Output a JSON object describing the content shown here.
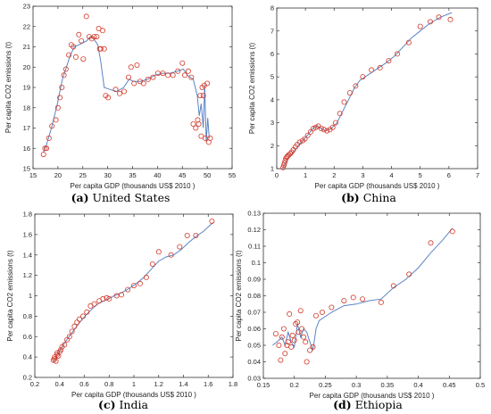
{
  "chart_data": [
    {
      "type": "scatter",
      "tag": "(a)",
      "caption": "United States",
      "xlabel": "Per capita GDP (thousands US$ 2010 )",
      "ylabel": "Per capita CO2 emissions (t)",
      "xlim": [
        15,
        55
      ],
      "ylim": [
        15,
        23
      ],
      "xticks": [
        15,
        20,
        25,
        30,
        35,
        40,
        45,
        50,
        55
      ],
      "yticks": [
        15,
        16,
        17,
        18,
        19,
        20,
        21,
        22,
        23
      ],
      "fit_line": [
        [
          17.1,
          15.8
        ],
        [
          17.6,
          16.1
        ],
        [
          18.1,
          16.5
        ],
        [
          18.7,
          17.0
        ],
        [
          19.2,
          17.5
        ],
        [
          19.8,
          18.1
        ],
        [
          20.4,
          18.8
        ],
        [
          21.0,
          19.5
        ],
        [
          21.7,
          20.0
        ],
        [
          22.5,
          20.6
        ],
        [
          23.3,
          21.0
        ],
        [
          24.2,
          21.1
        ],
        [
          25.0,
          21.2
        ],
        [
          25.8,
          21.3
        ],
        [
          26.5,
          21.5
        ],
        [
          27.2,
          21.4
        ],
        [
          28.0,
          21.1
        ],
        [
          28.6,
          20.3
        ],
        [
          29.3,
          19.0
        ],
        [
          30.5,
          18.9
        ],
        [
          31.8,
          18.8
        ],
        [
          33.2,
          19.0
        ],
        [
          34.3,
          19.4
        ],
        [
          35.2,
          19.3
        ],
        [
          36.5,
          19.3
        ],
        [
          38.0,
          19.4
        ],
        [
          39.5,
          19.6
        ],
        [
          41.0,
          19.7
        ],
        [
          42.5,
          19.7
        ],
        [
          44.0,
          19.8
        ],
        [
          45.2,
          19.9
        ],
        [
          46.0,
          19.6
        ],
        [
          47.2,
          19.4
        ],
        [
          48.0,
          18.6
        ],
        [
          48.4,
          17.6
        ],
        [
          48.8,
          18.2
        ],
        [
          49.2,
          17.0
        ],
        [
          49.5,
          19.1
        ],
        [
          49.8,
          16.3
        ],
        [
          50.1,
          17.5
        ],
        [
          50.4,
          16.5
        ]
      ],
      "points": [
        [
          17.1,
          15.7
        ],
        [
          17.4,
          16.0
        ],
        [
          17.7,
          16.0
        ],
        [
          18.2,
          16.5
        ],
        [
          18.8,
          17.1
        ],
        [
          19.6,
          17.4
        ],
        [
          20.0,
          18.0
        ],
        [
          20.4,
          18.5
        ],
        [
          20.8,
          19.0
        ],
        [
          21.2,
          19.6
        ],
        [
          21.6,
          19.9
        ],
        [
          22.2,
          20.6
        ],
        [
          22.7,
          21.1
        ],
        [
          23.1,
          21.0
        ],
        [
          23.6,
          20.5
        ],
        [
          24.2,
          21.6
        ],
        [
          24.7,
          21.3
        ],
        [
          25.1,
          20.4
        ],
        [
          25.7,
          22.5
        ],
        [
          26.3,
          21.5
        ],
        [
          26.8,
          21.4
        ],
        [
          27.3,
          21.5
        ],
        [
          27.8,
          21.5
        ],
        [
          28.2,
          21.9
        ],
        [
          28.4,
          20.9
        ],
        [
          28.6,
          20.9
        ],
        [
          29.0,
          21.8
        ],
        [
          29.3,
          20.9
        ],
        [
          29.6,
          18.6
        ],
        [
          30.1,
          18.5
        ],
        [
          31.6,
          18.9
        ],
        [
          32.4,
          18.7
        ],
        [
          33.3,
          18.8
        ],
        [
          34.2,
          19.5
        ],
        [
          34.7,
          20.0
        ],
        [
          35.3,
          19.2
        ],
        [
          35.9,
          20.1
        ],
        [
          36.5,
          19.3
        ],
        [
          37.2,
          19.2
        ],
        [
          38.1,
          19.4
        ],
        [
          39.1,
          19.5
        ],
        [
          40.1,
          19.7
        ],
        [
          41.1,
          19.7
        ],
        [
          42.1,
          19.6
        ],
        [
          43.1,
          19.6
        ],
        [
          44.1,
          19.8
        ],
        [
          45.0,
          20.2
        ],
        [
          45.5,
          19.6
        ],
        [
          46.2,
          19.8
        ],
        [
          46.8,
          19.5
        ],
        [
          47.2,
          17.2
        ],
        [
          47.7,
          17.0
        ],
        [
          48.1,
          17.4
        ],
        [
          48.3,
          17.2
        ],
        [
          48.6,
          18.6
        ],
        [
          48.8,
          16.6
        ],
        [
          49.0,
          19.0
        ],
        [
          49.2,
          18.6
        ],
        [
          49.4,
          19.1
        ],
        [
          49.6,
          16.5
        ],
        [
          50.0,
          19.2
        ],
        [
          50.3,
          16.3
        ],
        [
          50.6,
          16.5
        ]
      ]
    },
    {
      "type": "scatter",
      "tag": "(b)",
      "caption": "China",
      "xlabel": "Per capita GDP (thousands US$ 2010 )",
      "ylabel": "Per capita CO2 emissions (t)",
      "xlim": [
        0,
        7
      ],
      "ylim": [
        1,
        8
      ],
      "xticks": [
        0,
        1,
        2,
        3,
        4,
        5,
        6,
        7
      ],
      "yticks": [
        1,
        2,
        3,
        4,
        5,
        6,
        7,
        8
      ],
      "fit_line": [
        [
          0.22,
          1.05
        ],
        [
          0.3,
          1.25
        ],
        [
          0.4,
          1.45
        ],
        [
          0.5,
          1.6
        ],
        [
          0.6,
          1.75
        ],
        [
          0.7,
          1.9
        ],
        [
          0.8,
          2.05
        ],
        [
          0.9,
          2.2
        ],
        [
          1.0,
          2.35
        ],
        [
          1.1,
          2.5
        ],
        [
          1.2,
          2.65
        ],
        [
          1.3,
          2.8
        ],
        [
          1.4,
          2.85
        ],
        [
          1.5,
          2.8
        ],
        [
          1.6,
          2.7
        ],
        [
          1.7,
          2.65
        ],
        [
          1.8,
          2.7
        ],
        [
          1.9,
          2.75
        ],
        [
          2.1,
          3.0
        ],
        [
          2.3,
          3.5
        ],
        [
          2.5,
          4.0
        ],
        [
          2.7,
          4.5
        ],
        [
          2.9,
          4.85
        ],
        [
          3.2,
          5.1
        ],
        [
          3.5,
          5.35
        ],
        [
          3.8,
          5.6
        ],
        [
          4.1,
          5.9
        ],
        [
          4.4,
          6.3
        ],
        [
          4.7,
          6.7
        ],
        [
          5.0,
          7.0
        ],
        [
          5.3,
          7.3
        ],
        [
          5.7,
          7.6
        ],
        [
          6.1,
          7.8
        ]
      ],
      "points": [
        [
          0.22,
          1.05
        ],
        [
          0.25,
          1.15
        ],
        [
          0.27,
          1.25
        ],
        [
          0.3,
          1.35
        ],
        [
          0.32,
          1.45
        ],
        [
          0.35,
          1.5
        ],
        [
          0.38,
          1.55
        ],
        [
          0.42,
          1.6
        ],
        [
          0.47,
          1.65
        ],
        [
          0.52,
          1.72
        ],
        [
          0.58,
          1.82
        ],
        [
          0.65,
          1.95
        ],
        [
          0.72,
          2.05
        ],
        [
          0.8,
          2.15
        ],
        [
          0.9,
          2.22
        ],
        [
          0.98,
          2.3
        ],
        [
          1.08,
          2.45
        ],
        [
          1.18,
          2.6
        ],
        [
          1.28,
          2.75
        ],
        [
          1.36,
          2.8
        ],
        [
          1.45,
          2.85
        ],
        [
          1.55,
          2.75
        ],
        [
          1.65,
          2.7
        ],
        [
          1.75,
          2.65
        ],
        [
          1.85,
          2.7
        ],
        [
          1.95,
          2.8
        ],
        [
          2.05,
          3.0
        ],
        [
          2.2,
          3.4
        ],
        [
          2.35,
          3.9
        ],
        [
          2.55,
          4.3
        ],
        [
          2.75,
          4.6
        ],
        [
          3.0,
          5.0
        ],
        [
          3.3,
          5.3
        ],
        [
          3.6,
          5.4
        ],
        [
          3.9,
          5.7
        ],
        [
          4.2,
          6.0
        ],
        [
          4.6,
          6.5
        ],
        [
          5.0,
          7.2
        ],
        [
          5.35,
          7.4
        ],
        [
          5.65,
          7.6
        ],
        [
          6.05,
          7.5
        ]
      ]
    },
    {
      "type": "scatter",
      "tag": "(c)",
      "caption": "India",
      "xlabel": "Per capita GDP (thousands US$ 2010 )",
      "ylabel": "Per capita CO2 emissions (t)",
      "xlim": [
        0.2,
        1.8
      ],
      "ylim": [
        0.2,
        1.8
      ],
      "xticks": [
        0.2,
        0.4,
        0.6,
        0.8,
        1,
        1.2,
        1.4,
        1.6,
        1.8
      ],
      "yticks": [
        0.2,
        0.4,
        0.6,
        0.8,
        1,
        1.2,
        1.4,
        1.6,
        1.8
      ],
      "fit_line": [
        [
          0.36,
          0.37
        ],
        [
          0.38,
          0.42
        ],
        [
          0.4,
          0.46
        ],
        [
          0.43,
          0.52
        ],
        [
          0.47,
          0.59
        ],
        [
          0.52,
          0.67
        ],
        [
          0.57,
          0.75
        ],
        [
          0.62,
          0.82
        ],
        [
          0.67,
          0.88
        ],
        [
          0.72,
          0.93
        ],
        [
          0.78,
          0.96
        ],
        [
          0.84,
          1.0
        ],
        [
          0.9,
          1.03
        ],
        [
          0.96,
          1.07
        ],
        [
          1.02,
          1.12
        ],
        [
          1.08,
          1.18
        ],
        [
          1.14,
          1.26
        ],
        [
          1.2,
          1.34
        ],
        [
          1.26,
          1.38
        ],
        [
          1.32,
          1.4
        ],
        [
          1.38,
          1.45
        ],
        [
          1.44,
          1.52
        ],
        [
          1.5,
          1.58
        ],
        [
          1.56,
          1.63
        ],
        [
          1.64,
          1.72
        ]
      ],
      "points": [
        [
          0.35,
          0.37
        ],
        [
          0.36,
          0.38
        ],
        [
          0.36,
          0.4
        ],
        [
          0.37,
          0.36
        ],
        [
          0.38,
          0.42
        ],
        [
          0.38,
          0.44
        ],
        [
          0.39,
          0.41
        ],
        [
          0.4,
          0.45
        ],
        [
          0.41,
          0.47
        ],
        [
          0.42,
          0.5
        ],
        [
          0.44,
          0.52
        ],
        [
          0.46,
          0.57
        ],
        [
          0.48,
          0.6
        ],
        [
          0.5,
          0.65
        ],
        [
          0.52,
          0.7
        ],
        [
          0.54,
          0.74
        ],
        [
          0.56,
          0.77
        ],
        [
          0.59,
          0.8
        ],
        [
          0.62,
          0.84
        ],
        [
          0.65,
          0.9
        ],
        [
          0.68,
          0.92
        ],
        [
          0.72,
          0.95
        ],
        [
          0.75,
          0.97
        ],
        [
          0.78,
          0.98
        ],
        [
          0.8,
          0.97
        ],
        [
          0.86,
          1.0
        ],
        [
          0.9,
          1.01
        ],
        [
          0.95,
          1.06
        ],
        [
          1.0,
          1.1
        ],
        [
          1.05,
          1.12
        ],
        [
          1.1,
          1.18
        ],
        [
          1.15,
          1.31
        ],
        [
          1.2,
          1.43
        ],
        [
          1.3,
          1.4
        ],
        [
          1.37,
          1.48
        ],
        [
          1.43,
          1.59
        ],
        [
          1.5,
          1.59
        ],
        [
          1.63,
          1.73
        ]
      ]
    },
    {
      "type": "scatter",
      "tag": "(d)",
      "caption": "Ethiopia",
      "xlabel": "Per capita GDP (thousands US$ 2010 )",
      "ylabel": "Per capita CO2 emissions (t)",
      "xlim": [
        0.15,
        0.5
      ],
      "ylim": [
        0.03,
        0.13
      ],
      "xticks": [
        0.15,
        0.2,
        0.25,
        0.3,
        0.35,
        0.4,
        0.45,
        0.5
      ],
      "yticks": [
        0.03,
        0.04,
        0.05,
        0.06,
        0.07,
        0.08,
        0.09,
        0.1,
        0.11,
        0.12,
        0.13
      ],
      "fit_line": [
        [
          0.165,
          0.05
        ],
        [
          0.175,
          0.053
        ],
        [
          0.18,
          0.055
        ],
        [
          0.185,
          0.05
        ],
        [
          0.19,
          0.058
        ],
        [
          0.195,
          0.052
        ],
        [
          0.2,
          0.049
        ],
        [
          0.205,
          0.063
        ],
        [
          0.21,
          0.055
        ],
        [
          0.215,
          0.06
        ],
        [
          0.22,
          0.058
        ],
        [
          0.225,
          0.052
        ],
        [
          0.23,
          0.047
        ],
        [
          0.235,
          0.06
        ],
        [
          0.24,
          0.065
        ],
        [
          0.26,
          0.07
        ],
        [
          0.28,
          0.074
        ],
        [
          0.3,
          0.075
        ],
        [
          0.32,
          0.077
        ],
        [
          0.34,
          0.078
        ],
        [
          0.36,
          0.085
        ],
        [
          0.38,
          0.09
        ],
        [
          0.4,
          0.097
        ],
        [
          0.42,
          0.106
        ],
        [
          0.44,
          0.114
        ],
        [
          0.455,
          0.121
        ]
      ],
      "points": [
        [
          0.17,
          0.057
        ],
        [
          0.175,
          0.05
        ],
        [
          0.178,
          0.041
        ],
        [
          0.18,
          0.055
        ],
        [
          0.183,
          0.06
        ],
        [
          0.185,
          0.045
        ],
        [
          0.188,
          0.05
        ],
        [
          0.19,
          0.052
        ],
        [
          0.192,
          0.069
        ],
        [
          0.195,
          0.049
        ],
        [
          0.197,
          0.056
        ],
        [
          0.2,
          0.053
        ],
        [
          0.202,
          0.063
        ],
        [
          0.205,
          0.064
        ],
        [
          0.207,
          0.058
        ],
        [
          0.21,
          0.071
        ],
        [
          0.212,
          0.06
        ],
        [
          0.215,
          0.055
        ],
        [
          0.218,
          0.052
        ],
        [
          0.22,
          0.04
        ],
        [
          0.225,
          0.047
        ],
        [
          0.23,
          0.049
        ],
        [
          0.235,
          0.068
        ],
        [
          0.245,
          0.07
        ],
        [
          0.26,
          0.073
        ],
        [
          0.28,
          0.077
        ],
        [
          0.295,
          0.079
        ],
        [
          0.31,
          0.078
        ],
        [
          0.34,
          0.076
        ],
        [
          0.36,
          0.086
        ],
        [
          0.385,
          0.093
        ],
        [
          0.42,
          0.112
        ],
        [
          0.455,
          0.119
        ]
      ]
    }
  ]
}
